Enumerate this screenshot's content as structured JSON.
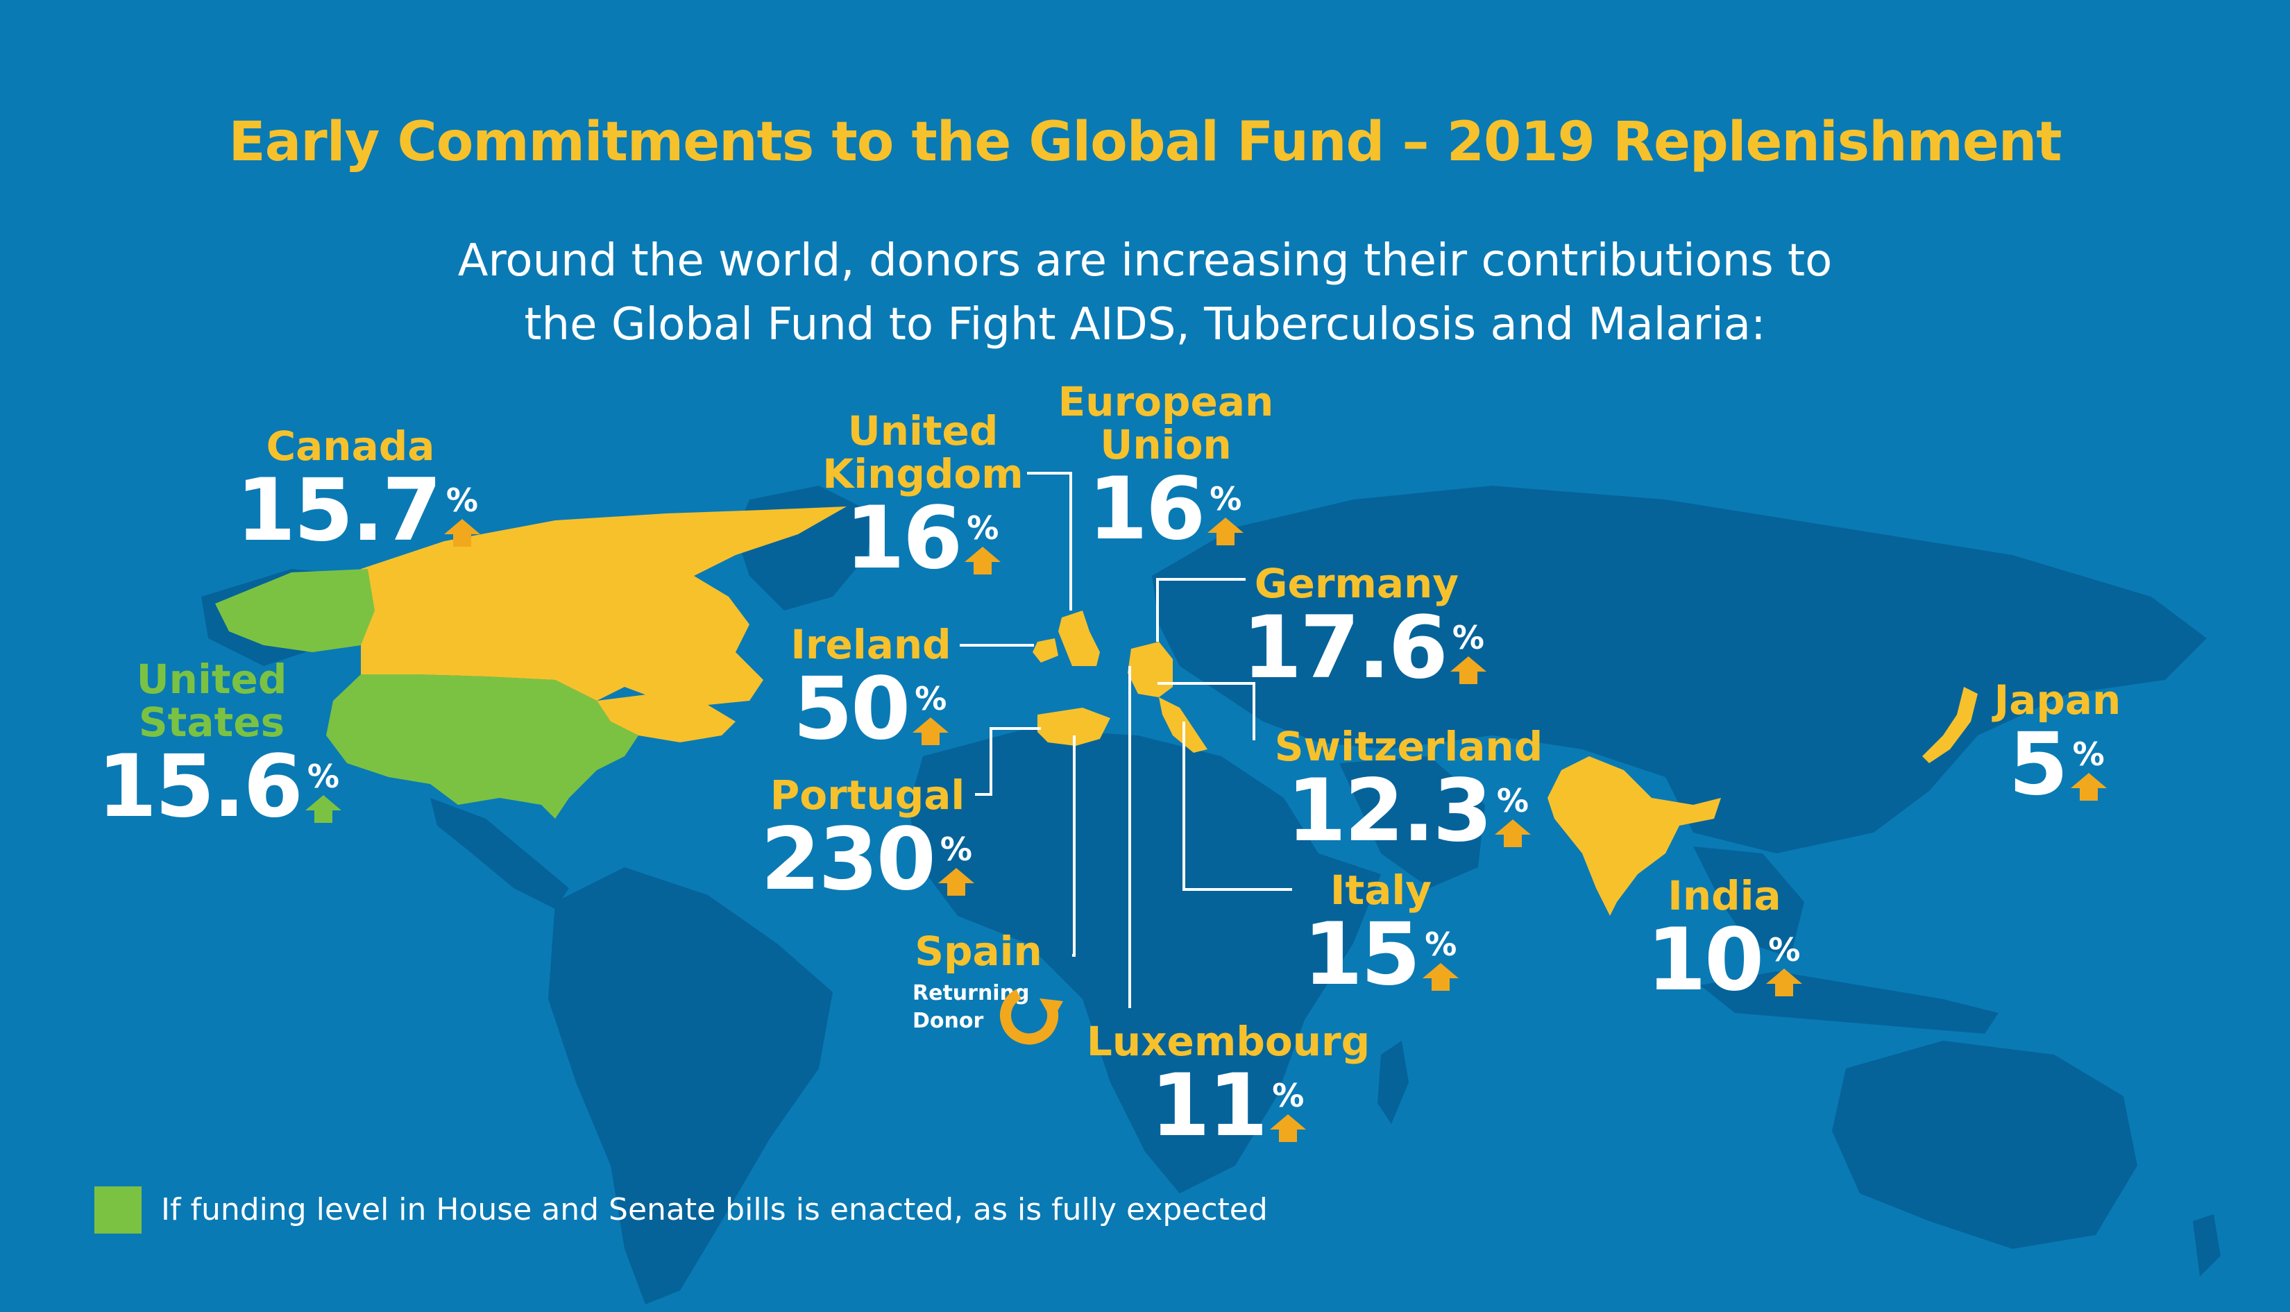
{
  "title": "Early Commitments to the Global Fund – 2019 Replenishment",
  "subtitle": {
    "line1": "Around the world, donors are increasing their contributions to",
    "line2": "the Global Fund to Fight AIDS, Tuberculosis and Malaria:"
  },
  "colors": {
    "background": "#0a7ab4",
    "continent": "#05639a",
    "highlight_yellow": "#f7c12c",
    "highlight_green": "#7cc242",
    "arrow": "#f2a81d",
    "text": "#ffffff"
  },
  "donors": {
    "canada": {
      "name": "Canada",
      "value": "15.7",
      "unit": "%",
      "icon": "up-arrow-icon"
    },
    "united_states": {
      "name_line1": "United",
      "name_line2": "States",
      "value": "15.6",
      "unit": "%",
      "icon": "up-arrow-icon"
    },
    "united_kingdom": {
      "name_line1": "United",
      "name_line2": "Kingdom",
      "value": "16",
      "unit": "%",
      "icon": "up-arrow-icon"
    },
    "european_union": {
      "name_line1": "European",
      "name_line2": "Union",
      "value": "16",
      "unit": "%",
      "icon": "up-arrow-icon"
    },
    "germany": {
      "name": "Germany",
      "value": "17.6",
      "unit": "%",
      "icon": "up-arrow-icon"
    },
    "ireland": {
      "name": "Ireland",
      "value": "50",
      "unit": "%",
      "icon": "up-arrow-icon"
    },
    "switzerland": {
      "name": "Switzerland",
      "value": "12.3",
      "unit": "%",
      "icon": "up-arrow-icon"
    },
    "portugal": {
      "name": "Portugal",
      "value": "230",
      "unit": "%",
      "icon": "up-arrow-icon"
    },
    "italy": {
      "name": "Italy",
      "value": "15",
      "unit": "%",
      "icon": "up-arrow-icon"
    },
    "spain": {
      "name": "Spain",
      "status_line1": "Returning",
      "status_line2": "Donor",
      "icon": "returning-donor-icon"
    },
    "luxembourg": {
      "name": "Luxembourg",
      "value": "11",
      "unit": "%",
      "icon": "up-arrow-icon"
    },
    "japan": {
      "name": "Japan",
      "value": "5",
      "unit": "%",
      "icon": "up-arrow-icon"
    },
    "india": {
      "name": "India",
      "value": "10",
      "unit": "%",
      "icon": "up-arrow-icon"
    }
  },
  "legend": {
    "swatch_color": "#7cc242",
    "text": "If funding level in House and Senate bills is enacted, as is fully expected"
  }
}
